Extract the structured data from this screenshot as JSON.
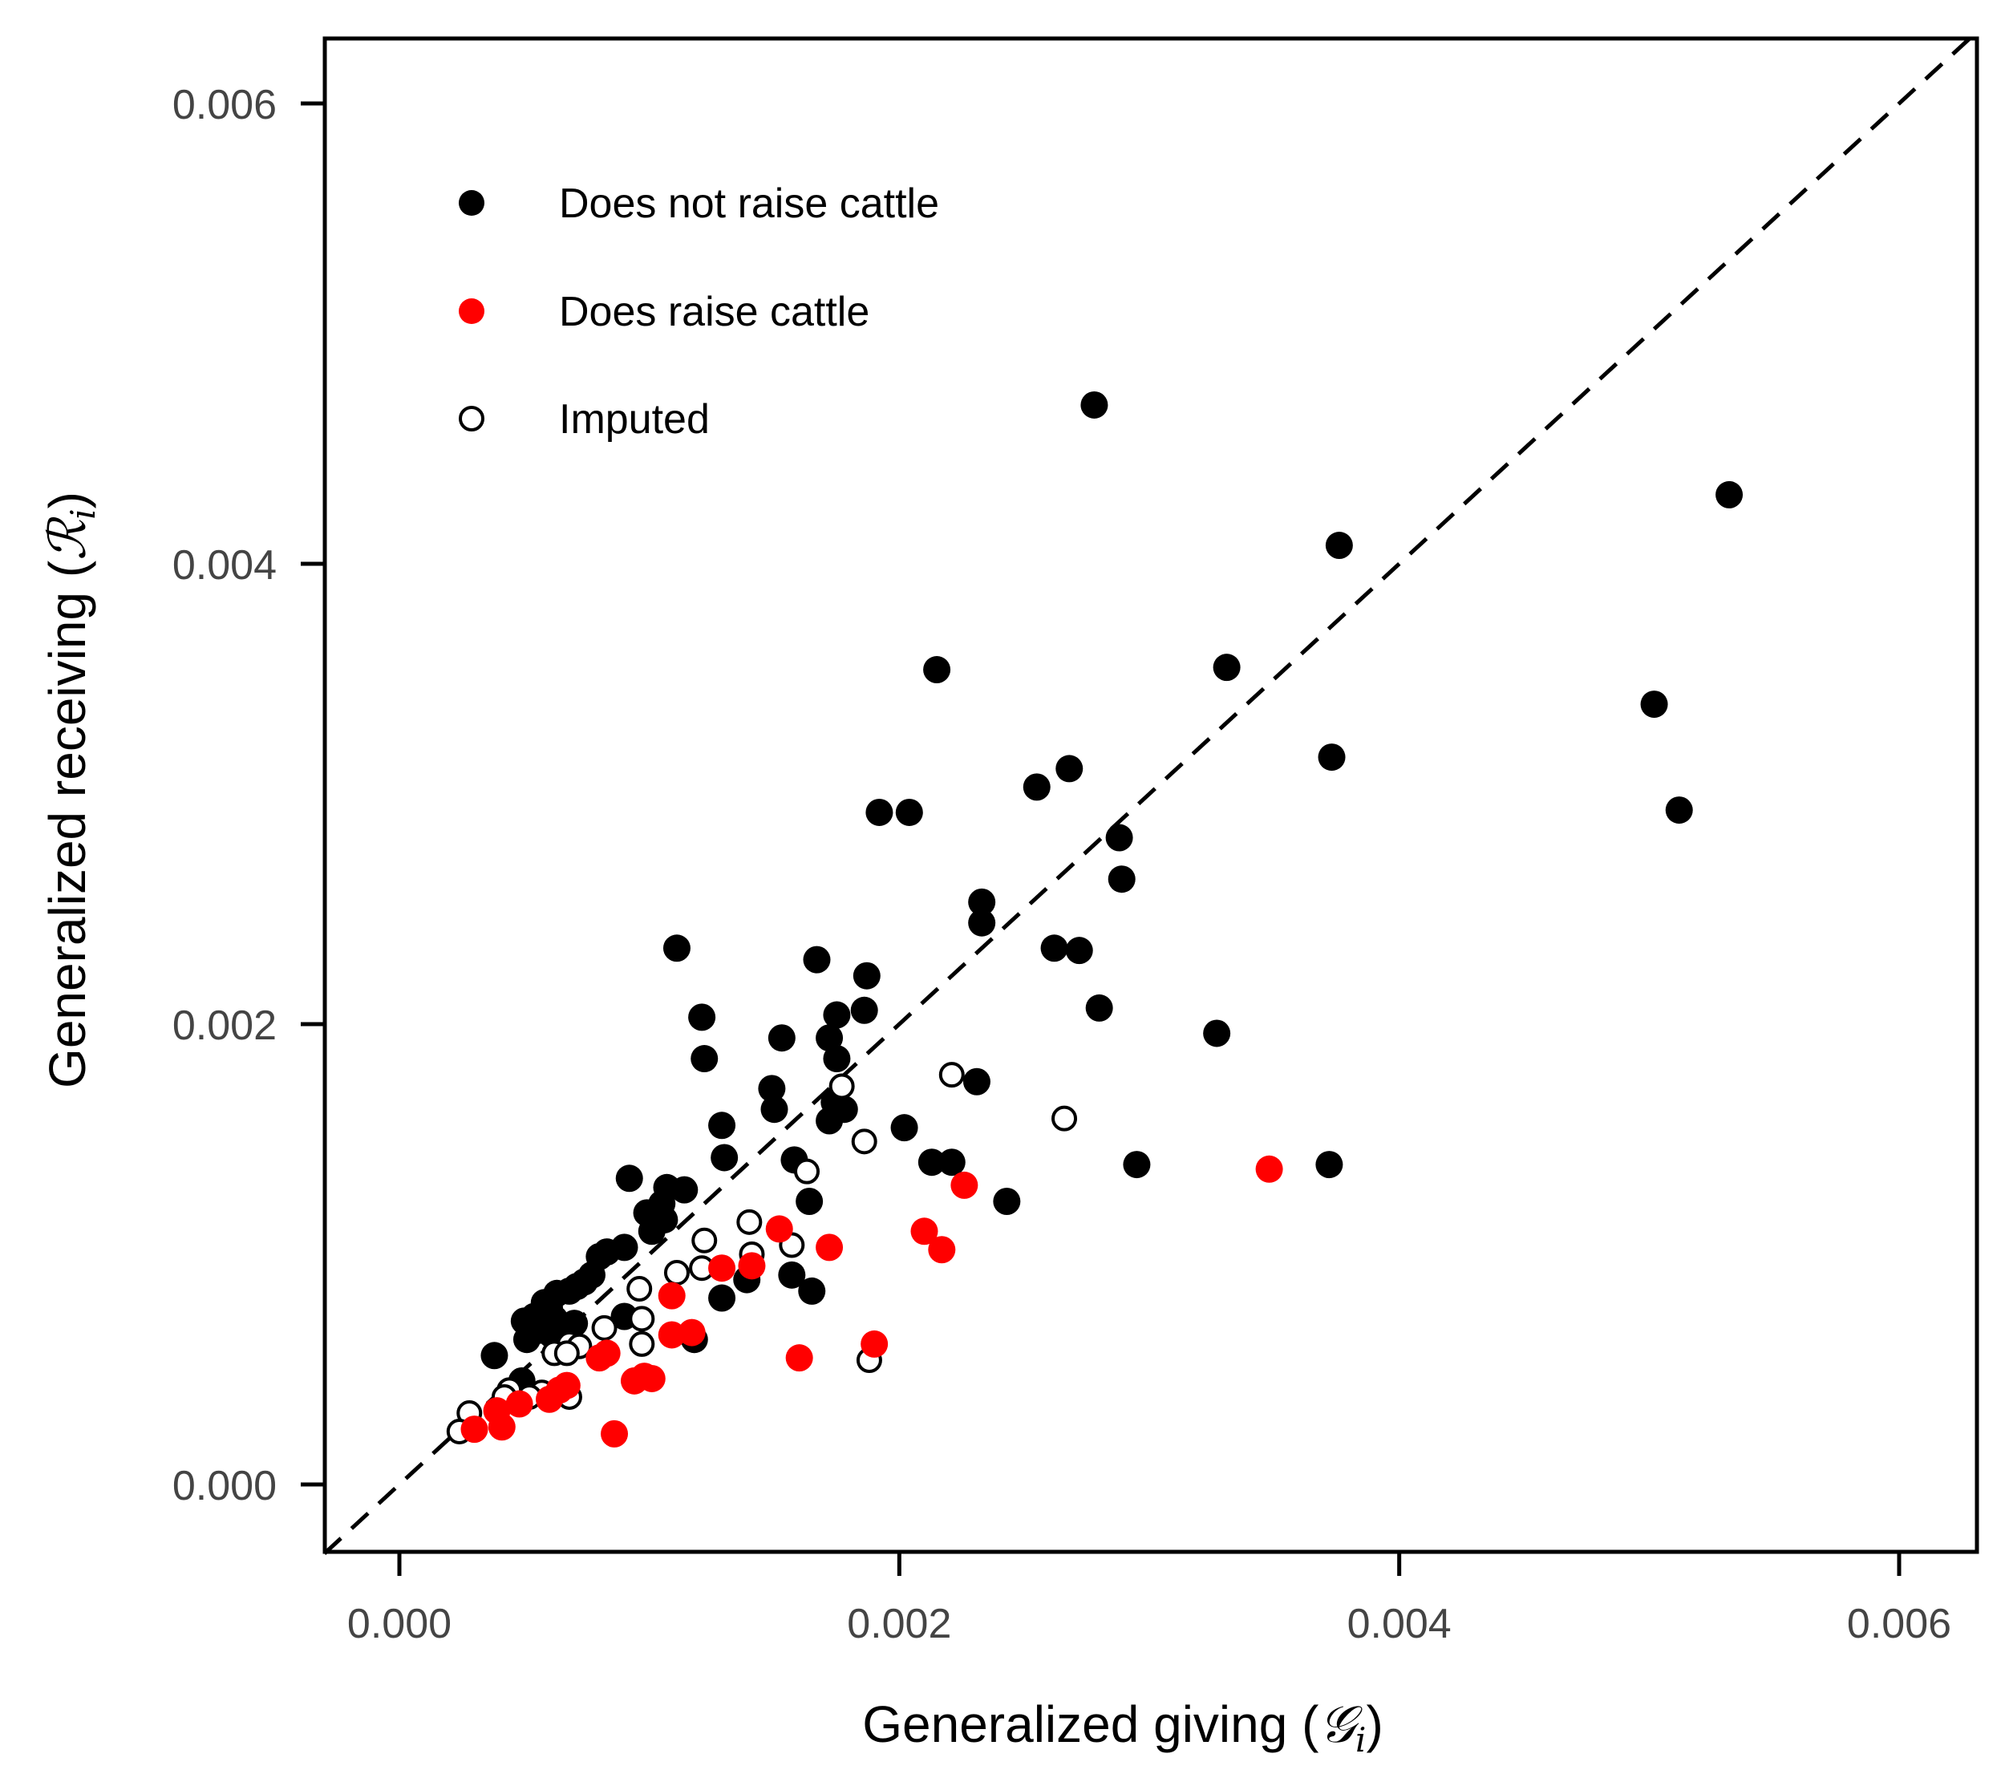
{
  "chart_data": {
    "type": "scatter",
    "title": "",
    "xlabel": "Generalized giving (",
    "xlabel_symbol": "𝒢",
    "xlabel_sub": "i",
    "xlabel_close": ")",
    "ylabel": "Generalized receiving (",
    "ylabel_symbol": "ℛ",
    "ylabel_sub": "i",
    "ylabel_close": ")",
    "xlim": [
      -0.0003,
      0.0063
    ],
    "ylim": [
      -0.0003,
      0.0063
    ],
    "xticks": [
      0.0,
      0.002,
      0.004,
      0.006
    ],
    "yticks": [
      0.0,
      0.002,
      0.004,
      0.006
    ],
    "xtick_labels": [
      "0.000",
      "0.002",
      "0.004",
      "0.006"
    ],
    "ytick_labels": [
      "0.000",
      "0.002",
      "0.004",
      "0.006"
    ],
    "grid": false,
    "legend_position": "upper-left",
    "reference_line": {
      "style": "dashed",
      "color": "#000000",
      "from": [
        -0.0003,
        -0.0003
      ],
      "to": [
        0.0063,
        0.0063
      ]
    },
    "series": [
      {
        "name": "Does not raise cattle",
        "marker": "filled",
        "color": "#000000",
        "points": [
          [
            0.00278,
            0.00469
          ],
          [
            0.00532,
            0.0043
          ],
          [
            0.00376,
            0.00408
          ],
          [
            0.00331,
            0.00355
          ],
          [
            0.00215,
            0.00354
          ],
          [
            0.00502,
            0.00339
          ],
          [
            0.00373,
            0.00316
          ],
          [
            0.00268,
            0.00311
          ],
          [
            0.00255,
            0.00303
          ],
          [
            0.00192,
            0.00292
          ],
          [
            0.00204,
            0.00292
          ],
          [
            0.00512,
            0.00293
          ],
          [
            0.00288,
            0.00281
          ],
          [
            0.00289,
            0.00263
          ],
          [
            0.00233,
            0.00253
          ],
          [
            0.00233,
            0.00244
          ],
          [
            0.00111,
            0.00233
          ],
          [
            0.00262,
            0.00233
          ],
          [
            0.00272,
            0.00232
          ],
          [
            0.00167,
            0.00228
          ],
          [
            0.00187,
            0.00221
          ],
          [
            0.00175,
            0.00204
          ],
          [
            0.00186,
            0.00206
          ],
          [
            0.0028,
            0.00207
          ],
          [
            0.00121,
            0.00203
          ],
          [
            0.00153,
            0.00194
          ],
          [
            0.00172,
            0.00194
          ],
          [
            0.00327,
            0.00196
          ],
          [
            0.00175,
            0.00185
          ],
          [
            0.00122,
            0.00185
          ],
          [
            0.00149,
            0.00172
          ],
          [
            0.00231,
            0.00175
          ],
          [
            0.00174,
            0.00166
          ],
          [
            0.0015,
            0.00163
          ],
          [
            0.00178,
            0.00163
          ],
          [
            0.00172,
            0.00158
          ],
          [
            0.00129,
            0.00156
          ],
          [
            0.00202,
            0.00155
          ],
          [
            0.0013,
            0.00142
          ],
          [
            0.00158,
            0.00141
          ],
          [
            0.00213,
            0.0014
          ],
          [
            0.00221,
            0.0014
          ],
          [
            0.00295,
            0.00139
          ],
          [
            0.00372,
            0.00139
          ],
          [
            0.00092,
            0.00133
          ],
          [
            0.00107,
            0.00129
          ],
          [
            0.00114,
            0.00128
          ],
          [
            0.00105,
            0.00122
          ],
          [
            0.00164,
            0.00123
          ],
          [
            0.00243,
            0.00123
          ],
          [
            0.00099,
            0.00118
          ],
          [
            0.00106,
            0.00115
          ],
          [
            0.00101,
            0.0011
          ],
          [
            0.0009,
            0.00103
          ],
          [
            0.00083,
            0.00101
          ],
          [
            0.0008,
            0.00099
          ],
          [
            0.00077,
            0.00091
          ],
          [
            0.00071,
            0.00086
          ],
          [
            0.00074,
            0.00088
          ],
          [
            0.00063,
            0.00083
          ],
          [
            0.00068,
            0.00084
          ],
          [
            0.00058,
            0.00079
          ],
          [
            0.0006,
            0.00077
          ],
          [
            0.00054,
            0.00073
          ],
          [
            0.0005,
            0.00071
          ],
          [
            0.00062,
            0.00072
          ],
          [
            0.0007,
            0.0007
          ],
          [
            0.0009,
            0.00073
          ],
          [
            0.00056,
            0.00067
          ],
          [
            0.00051,
            0.00063
          ],
          [
            0.00061,
            0.00065
          ],
          [
            0.00038,
            0.00056
          ],
          [
            0.00049,
            0.00045
          ],
          [
            0.00129,
            0.00081
          ],
          [
            0.00157,
            0.00091
          ],
          [
            0.00165,
            0.00084
          ],
          [
            0.00139,
            0.00089
          ],
          [
            0.00118,
            0.00063
          ]
        ]
      },
      {
        "name": "Does raise cattle",
        "marker": "filled",
        "color": "#ff0000",
        "points": [
          [
            0.00348,
            0.00137
          ],
          [
            0.00226,
            0.0013
          ],
          [
            0.00152,
            0.00111
          ],
          [
            0.0021,
            0.0011
          ],
          [
            0.00172,
            0.00103
          ],
          [
            0.00217,
            0.00102
          ],
          [
            0.00129,
            0.00094
          ],
          [
            0.00141,
            0.00095
          ],
          [
            0.00109,
            0.00082
          ],
          [
            0.00109,
            0.00065
          ],
          [
            0.00117,
            0.00066
          ],
          [
            0.0019,
            0.00061
          ],
          [
            0.0016,
            0.00055
          ],
          [
            0.0008,
            0.00055
          ],
          [
            0.00083,
            0.00057
          ],
          [
            0.00098,
            0.00047
          ],
          [
            0.00094,
            0.00045
          ],
          [
            0.00101,
            0.00046
          ],
          [
            0.00064,
            0.00041
          ],
          [
            0.00067,
            0.00043
          ],
          [
            0.0006,
            0.00037
          ],
          [
            0.00048,
            0.00035
          ],
          [
            0.00039,
            0.00032
          ],
          [
            0.00041,
            0.00025
          ],
          [
            0.0003,
            0.00024
          ],
          [
            0.00086,
            0.00022
          ]
        ]
      },
      {
        "name": "Imputed",
        "marker": "open",
        "color": "#000000",
        "points": [
          [
            0.00221,
            0.00178
          ],
          [
            0.00177,
            0.00173
          ],
          [
            0.00266,
            0.00159
          ],
          [
            0.00186,
            0.00149
          ],
          [
            0.00163,
            0.00136
          ],
          [
            0.0014,
            0.00114
          ],
          [
            0.00122,
            0.00106
          ],
          [
            0.00157,
            0.00104
          ],
          [
            0.00141,
            0.001
          ],
          [
            0.00121,
            0.00094
          ],
          [
            0.00111,
            0.00092
          ],
          [
            0.00096,
            0.00085
          ],
          [
            0.00097,
            0.00072
          ],
          [
            0.00097,
            0.00061
          ],
          [
            0.00082,
            0.00068
          ],
          [
            0.00068,
            0.00061
          ],
          [
            0.00072,
            0.0006
          ],
          [
            0.00062,
            0.00057
          ],
          [
            0.00067,
            0.00057
          ],
          [
            0.00068,
            0.00038
          ],
          [
            0.00057,
            0.0004
          ],
          [
            0.00052,
            0.00038
          ],
          [
            0.00044,
            0.00041
          ],
          [
            0.00042,
            0.00038
          ],
          [
            0.00028,
            0.00031
          ],
          [
            0.00024,
            0.00023
          ],
          [
            0.00188,
            0.00054
          ]
        ]
      }
    ]
  }
}
